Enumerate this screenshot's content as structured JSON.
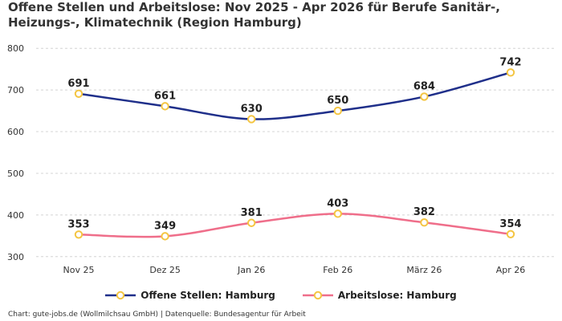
{
  "title": "Offene Stellen und Arbeitslose: Nov 2025 - Apr 2026 für Berufe Sanitär-, Heizungs-, Klimatechnik (Region Hamburg)",
  "footer": {
    "credit": "Chart: gute-jobs.de (Wollmilchsau GmbH) | Datenquelle: Bundesagentur für Arbeit"
  },
  "colors": {
    "series_1": "#1f2f8a",
    "series_2": "#ef6e8a",
    "marker": "#f4c542",
    "grid": "#d4d4d4"
  },
  "chart_data": {
    "type": "line",
    "categories": [
      "Nov 25",
      "Dez 25",
      "Jan 26",
      "Feb 26",
      "März 26",
      "Apr 26"
    ],
    "series": [
      {
        "name": "Offene Stellen: Hamburg",
        "values": [
          691,
          661,
          630,
          650,
          684,
          742
        ]
      },
      {
        "name": "Arbeitslose: Hamburg",
        "values": [
          353,
          349,
          381,
          403,
          382,
          354
        ]
      }
    ],
    "yticks": [
      300,
      400,
      500,
      600,
      700,
      800
    ],
    "ylim": [
      290,
      810
    ],
    "grid": true,
    "data_labels": true,
    "legend_position": "bottom-center",
    "xlabel": "",
    "ylabel": ""
  }
}
